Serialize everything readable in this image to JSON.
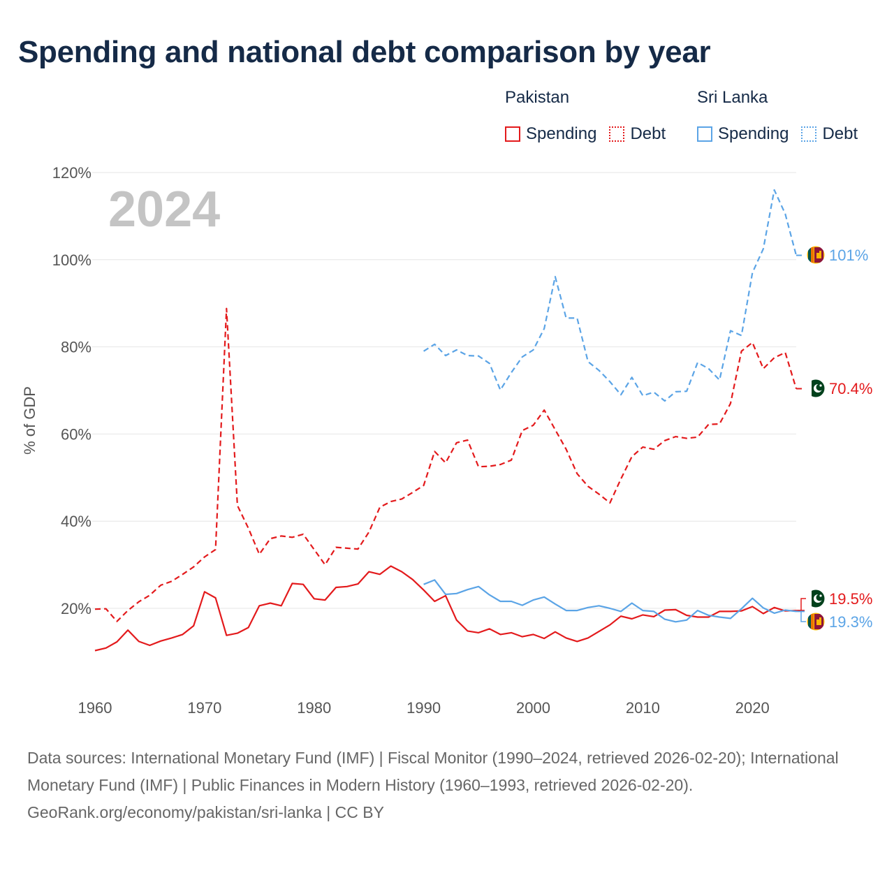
{
  "title": "Spending and national debt comparison by year",
  "legend": {
    "groups": [
      {
        "name": "Pakistan",
        "color": "#e31a1c",
        "spending_label": "Spending",
        "debt_label": "Debt"
      },
      {
        "name": "Sri Lanka",
        "color": "#5ba4e6",
        "spending_label": "Spending",
        "debt_label": "Debt"
      }
    ]
  },
  "footer": {
    "sources": "Data sources: International Monetary Fund (IMF) | Fiscal Monitor (1990–2024, retrieved 2026-02-20); International Monetary Fund (IMF) | Public Finances in Modern History (1960–1993, retrieved 2026-02-20).",
    "credit": "GeoRank.org/economy/pakistan/sri-lanka | CC BY"
  },
  "chart_data": {
    "type": "line",
    "title": "Spending and national debt comparison by year",
    "year_watermark": "2024",
    "xlabel": "",
    "ylabel": "% of GDP",
    "xlim": [
      1960,
      2024
    ],
    "ylim": [
      8,
      120
    ],
    "x_ticks": [
      1960,
      1970,
      1980,
      1990,
      2000,
      2010,
      2020
    ],
    "y_ticks": [
      20,
      40,
      60,
      80,
      100,
      120
    ],
    "y_tick_labels": [
      "20%",
      "40%",
      "60%",
      "80%",
      "100%",
      "120%"
    ],
    "grid": true,
    "series": [
      {
        "name": "Pakistan Debt",
        "country": "Pakistan",
        "measure": "Debt",
        "color": "#e31a1c",
        "style": "dashed",
        "end_label": "70.4%",
        "points": [
          [
            1960,
            19.8
          ],
          [
            1961,
            19.9
          ],
          [
            1962,
            17.0
          ],
          [
            1963,
            19.5
          ],
          [
            1964,
            21.5
          ],
          [
            1965,
            23.0
          ],
          [
            1966,
            25.3
          ],
          [
            1967,
            26.2
          ],
          [
            1968,
            27.8
          ],
          [
            1969,
            29.5
          ],
          [
            1970,
            31.8
          ],
          [
            1971,
            33.5
          ],
          [
            1972,
            88.8
          ],
          [
            1973,
            43.6
          ],
          [
            1974,
            38.4
          ],
          [
            1975,
            32.4
          ],
          [
            1976,
            36.0
          ],
          [
            1977,
            36.6
          ],
          [
            1978,
            36.3
          ],
          [
            1979,
            37.0
          ],
          [
            1980,
            33.5
          ],
          [
            1981,
            30.0
          ],
          [
            1982,
            34.0
          ],
          [
            1983,
            33.8
          ],
          [
            1984,
            33.6
          ],
          [
            1985,
            37.5
          ],
          [
            1986,
            43.2
          ],
          [
            1987,
            44.5
          ],
          [
            1988,
            45.1
          ],
          [
            1989,
            46.6
          ],
          [
            1990,
            48.2
          ],
          [
            1991,
            56.0
          ],
          [
            1992,
            53.4
          ],
          [
            1993,
            58.0
          ],
          [
            1994,
            58.6
          ],
          [
            1995,
            52.5
          ],
          [
            1996,
            52.6
          ],
          [
            1997,
            53.0
          ],
          [
            1998,
            54.0
          ],
          [
            1999,
            60.8
          ],
          [
            2000,
            62.0
          ],
          [
            2001,
            65.5
          ],
          [
            2002,
            61.0
          ],
          [
            2003,
            56.5
          ],
          [
            2004,
            50.9
          ],
          [
            2005,
            48.0
          ],
          [
            2006,
            46.2
          ],
          [
            2007,
            44.2
          ],
          [
            2008,
            49.7
          ],
          [
            2009,
            54.8
          ],
          [
            2010,
            57.0
          ],
          [
            2011,
            56.5
          ],
          [
            2012,
            58.5
          ],
          [
            2013,
            59.4
          ],
          [
            2014,
            59.0
          ],
          [
            2015,
            59.3
          ],
          [
            2016,
            62.2
          ],
          [
            2017,
            62.3
          ],
          [
            2018,
            67.0
          ],
          [
            2019,
            79.0
          ],
          [
            2020,
            81.0
          ],
          [
            2021,
            75.0
          ],
          [
            2022,
            77.5
          ],
          [
            2023,
            78.7
          ],
          [
            2024,
            70.4
          ]
        ]
      },
      {
        "name": "Pakistan Spending",
        "country": "Pakistan",
        "measure": "Spending",
        "color": "#e31a1c",
        "style": "solid",
        "end_label": "19.5%",
        "points": [
          [
            1960,
            10.3
          ],
          [
            1961,
            10.9
          ],
          [
            1962,
            12.3
          ],
          [
            1963,
            15.0
          ],
          [
            1964,
            12.4
          ],
          [
            1965,
            11.5
          ],
          [
            1966,
            12.5
          ],
          [
            1967,
            13.2
          ],
          [
            1968,
            14.0
          ],
          [
            1969,
            16.0
          ],
          [
            1970,
            23.8
          ],
          [
            1971,
            22.4
          ],
          [
            1972,
            13.8
          ],
          [
            1973,
            14.3
          ],
          [
            1974,
            15.6
          ],
          [
            1975,
            20.6
          ],
          [
            1976,
            21.2
          ],
          [
            1977,
            20.6
          ],
          [
            1978,
            25.7
          ],
          [
            1979,
            25.5
          ],
          [
            1980,
            22.2
          ],
          [
            1981,
            21.9
          ],
          [
            1982,
            24.8
          ],
          [
            1983,
            25.0
          ],
          [
            1984,
            25.6
          ],
          [
            1985,
            28.4
          ],
          [
            1986,
            27.8
          ],
          [
            1987,
            29.7
          ],
          [
            1988,
            28.4
          ],
          [
            1989,
            26.6
          ],
          [
            1990,
            24.2
          ],
          [
            1991,
            21.6
          ],
          [
            1992,
            22.9
          ],
          [
            1993,
            17.3
          ],
          [
            1994,
            14.8
          ],
          [
            1995,
            14.4
          ],
          [
            1996,
            15.3
          ],
          [
            1997,
            14.0
          ],
          [
            1998,
            14.4
          ],
          [
            1999,
            13.5
          ],
          [
            2000,
            14.0
          ],
          [
            2001,
            13.1
          ],
          [
            2002,
            14.6
          ],
          [
            2003,
            13.2
          ],
          [
            2004,
            12.4
          ],
          [
            2005,
            13.2
          ],
          [
            2006,
            14.7
          ],
          [
            2007,
            16.2
          ],
          [
            2008,
            18.2
          ],
          [
            2009,
            17.6
          ],
          [
            2010,
            18.5
          ],
          [
            2011,
            18.1
          ],
          [
            2012,
            19.6
          ],
          [
            2013,
            19.7
          ],
          [
            2014,
            18.4
          ],
          [
            2015,
            18.0
          ],
          [
            2016,
            18.0
          ],
          [
            2017,
            19.3
          ],
          [
            2018,
            19.3
          ],
          [
            2019,
            19.4
          ],
          [
            2020,
            20.4
          ],
          [
            2021,
            18.8
          ],
          [
            2022,
            20.2
          ],
          [
            2023,
            19.4
          ],
          [
            2024,
            19.5
          ]
        ]
      },
      {
        "name": "Sri Lanka Debt",
        "country": "Sri Lanka",
        "measure": "Debt",
        "color": "#5ba4e6",
        "style": "dashed",
        "end_label": "101%",
        "points": [
          [
            1990,
            79.0
          ],
          [
            1991,
            80.6
          ],
          [
            1992,
            78.0
          ],
          [
            1993,
            79.3
          ],
          [
            1994,
            78.0
          ],
          [
            1995,
            77.9
          ],
          [
            1996,
            76.2
          ],
          [
            1997,
            70.1
          ],
          [
            1998,
            74.1
          ],
          [
            1999,
            77.7
          ],
          [
            2000,
            79.3
          ],
          [
            2001,
            84.2
          ],
          [
            2002,
            96.1
          ],
          [
            2003,
            86.6
          ],
          [
            2004,
            86.6
          ],
          [
            2005,
            76.6
          ],
          [
            2006,
            74.6
          ],
          [
            2007,
            72.0
          ],
          [
            2008,
            69.0
          ],
          [
            2009,
            73.0
          ],
          [
            2010,
            68.8
          ],
          [
            2011,
            69.6
          ],
          [
            2012,
            67.6
          ],
          [
            2013,
            69.7
          ],
          [
            2014,
            69.8
          ],
          [
            2015,
            76.4
          ],
          [
            2016,
            75.0
          ],
          [
            2017,
            72.4
          ],
          [
            2018,
            83.7
          ],
          [
            2019,
            82.6
          ],
          [
            2020,
            97.0
          ],
          [
            2021,
            102.5
          ],
          [
            2022,
            116.0
          ],
          [
            2023,
            110.5
          ],
          [
            2024,
            101.0
          ]
        ]
      },
      {
        "name": "Sri Lanka Spending",
        "country": "Sri Lanka",
        "measure": "Spending",
        "color": "#5ba4e6",
        "style": "solid",
        "end_label": "19.3%",
        "points": [
          [
            1990,
            25.5
          ],
          [
            1991,
            26.5
          ],
          [
            1992,
            23.2
          ],
          [
            1993,
            23.4
          ],
          [
            1994,
            24.3
          ],
          [
            1995,
            25.0
          ],
          [
            1996,
            23.1
          ],
          [
            1997,
            21.6
          ],
          [
            1998,
            21.6
          ],
          [
            1999,
            20.7
          ],
          [
            2000,
            21.9
          ],
          [
            2001,
            22.6
          ],
          [
            2002,
            21.0
          ],
          [
            2003,
            19.5
          ],
          [
            2004,
            19.5
          ],
          [
            2005,
            20.2
          ],
          [
            2006,
            20.6
          ],
          [
            2007,
            20.0
          ],
          [
            2008,
            19.3
          ],
          [
            2009,
            21.2
          ],
          [
            2010,
            19.5
          ],
          [
            2011,
            19.3
          ],
          [
            2012,
            17.5
          ],
          [
            2013,
            16.9
          ],
          [
            2014,
            17.3
          ],
          [
            2015,
            19.5
          ],
          [
            2016,
            18.4
          ],
          [
            2017,
            18.0
          ],
          [
            2018,
            17.7
          ],
          [
            2019,
            19.9
          ],
          [
            2020,
            22.3
          ],
          [
            2021,
            20.1
          ],
          [
            2022,
            18.9
          ],
          [
            2023,
            19.6
          ],
          [
            2024,
            19.3
          ]
        ]
      }
    ]
  }
}
